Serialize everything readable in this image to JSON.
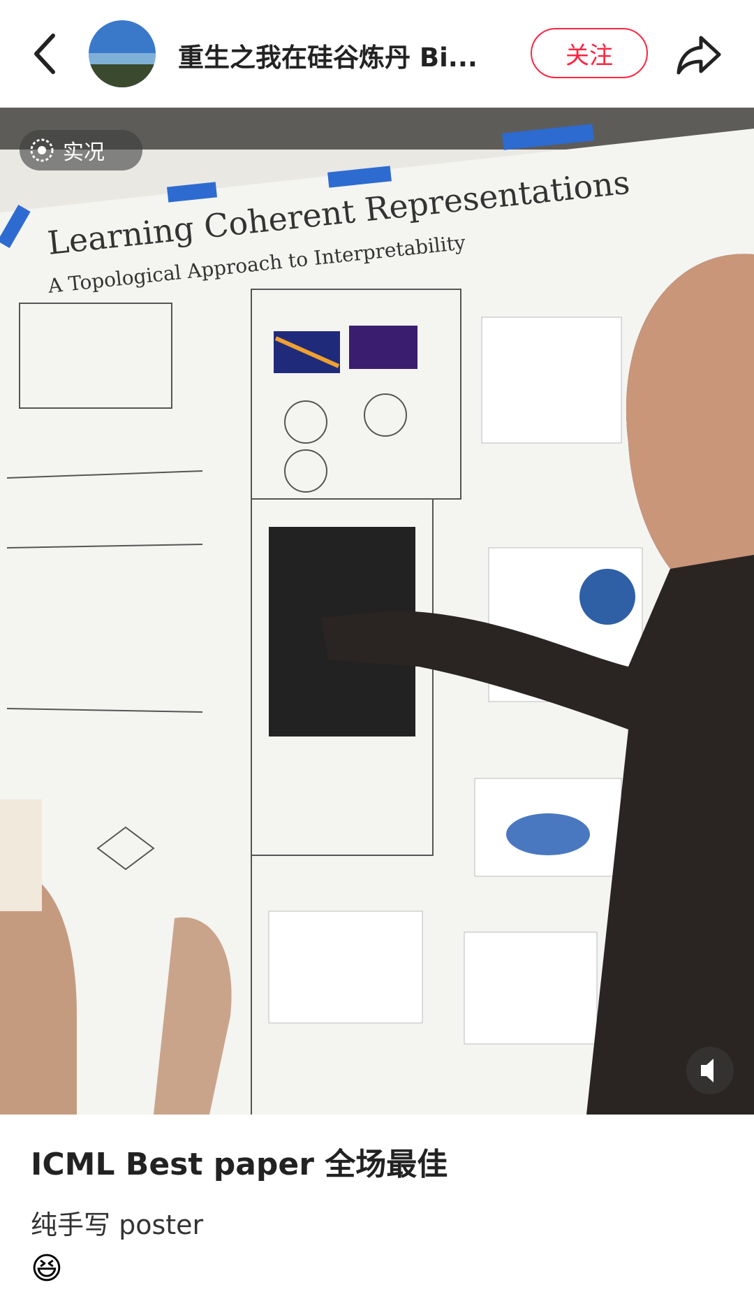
{
  "header": {
    "username": "重生之我在硅谷炼丹 Bi...",
    "follow_button": "关注"
  },
  "photo": {
    "live_badge": "实况",
    "poster_title": "Learning Coherent Representations",
    "poster_subtitle": "A Topological Approach to Interpretability"
  },
  "post": {
    "title": "ICML Best paper 全场最佳",
    "body": "纯手写 poster",
    "emoji": "😆"
  }
}
